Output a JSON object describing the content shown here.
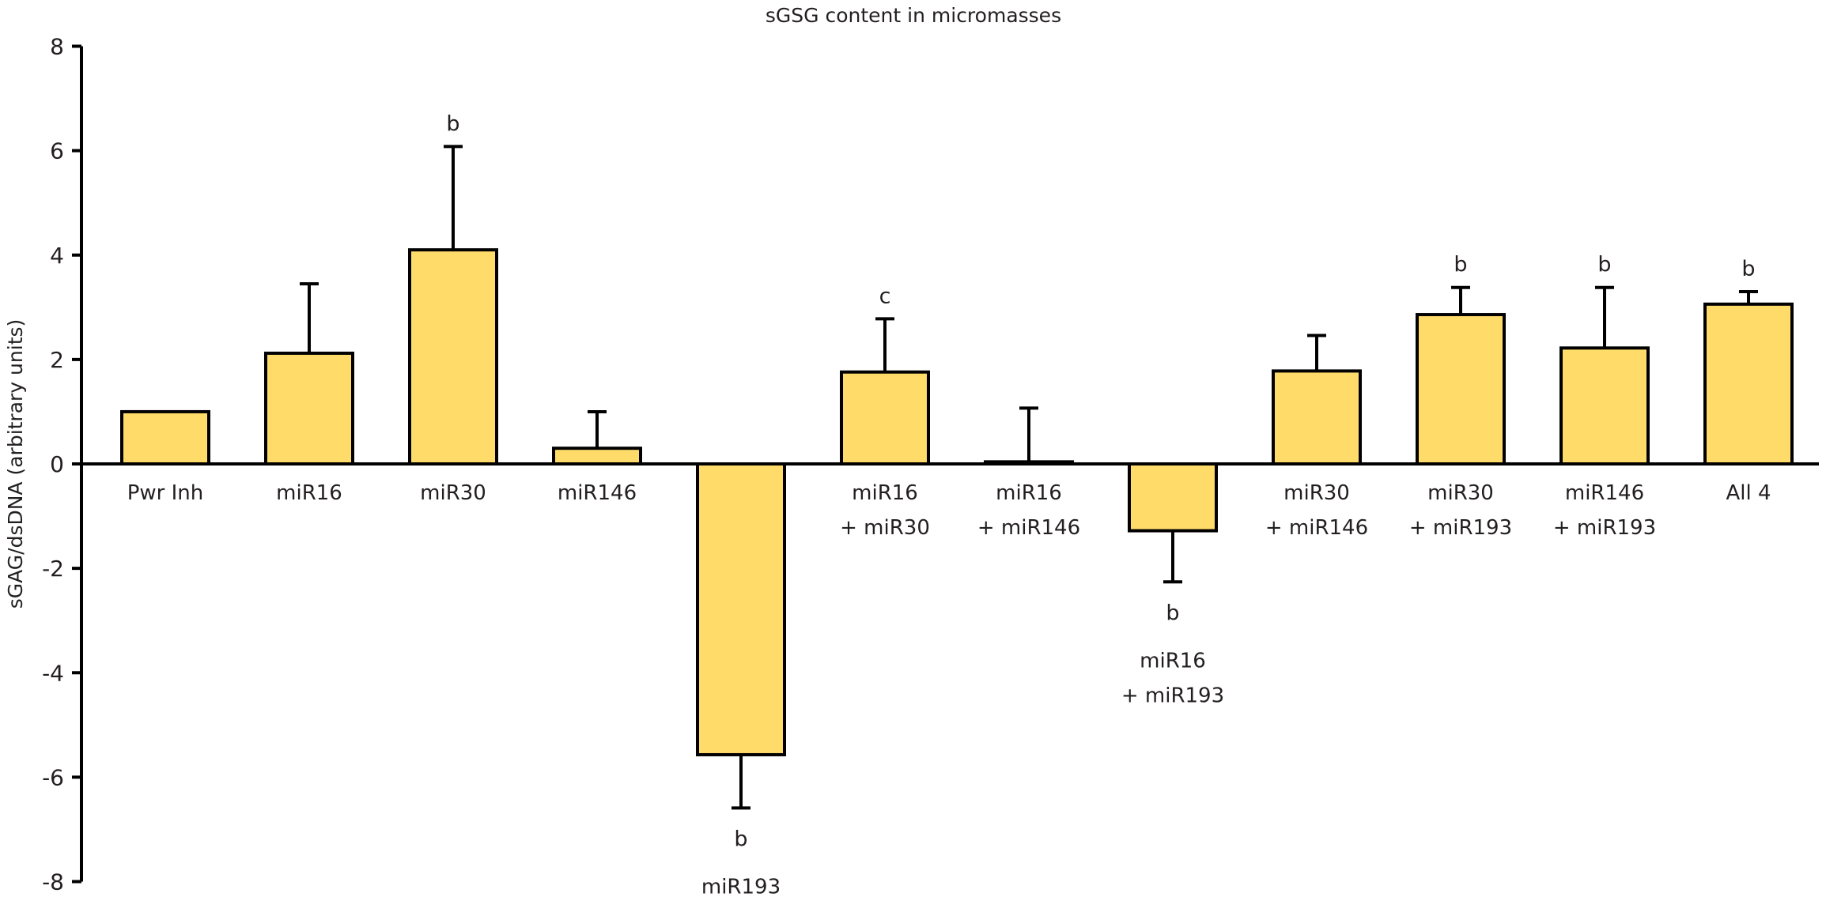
{
  "chart_data": {
    "type": "bar",
    "title": "sGSG content in micromasses",
    "xlabel": "",
    "ylabel": "sGAG/dsDNA (arbitrary units)",
    "ylim": [
      -8,
      8
    ],
    "yticks": [
      -8,
      -6,
      -4,
      -2,
      0,
      2,
      4,
      6,
      8
    ],
    "grid": false,
    "bar_color": "#FFDB6A",
    "edge_color": "#000000",
    "categories": [
      [
        "Pwr Inh"
      ],
      [
        "miR16"
      ],
      [
        "miR30"
      ],
      [
        "miR146"
      ],
      [
        "miR193"
      ],
      [
        "miR16",
        "+ miR30"
      ],
      [
        "miR16",
        "+ miR146"
      ],
      [
        "miR16",
        "+ miR193"
      ],
      [
        "miR30",
        "+ miR146"
      ],
      [
        "miR30",
        "+ miR193"
      ],
      [
        "miR146",
        "+ miR193"
      ],
      [
        "All 4"
      ]
    ],
    "values": [
      1.0,
      2.12,
      4.1,
      0.3,
      -5.57,
      1.76,
      0.04,
      -1.28,
      1.78,
      2.86,
      2.22,
      3.06
    ],
    "error": [
      0,
      1.33,
      1.98,
      0.7,
      1.02,
      1.02,
      1.03,
      0.98,
      0.68,
      0.52,
      1.16,
      0.24
    ],
    "annotations": [
      "",
      "",
      "b",
      "",
      "b",
      "c",
      "",
      "b",
      "",
      "b",
      "b",
      "b"
    ]
  }
}
